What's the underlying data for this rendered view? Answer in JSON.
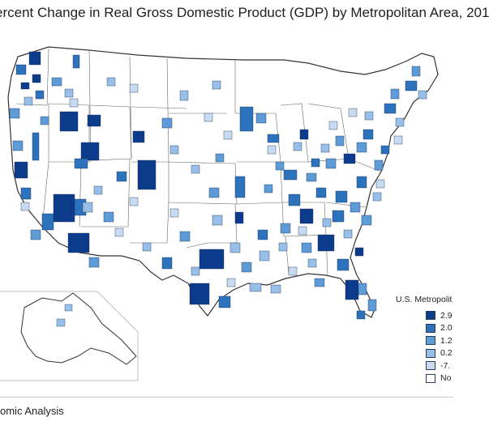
{
  "title": "ercent Change in Real Gross Domestic Product (GDP) by Metropolitan Area, 201",
  "legend": {
    "title": "U.S. Metropolit",
    "items": [
      {
        "label": "2.9",
        "color": "#0d3b8c"
      },
      {
        "label": "2.0",
        "color": "#2c72bd"
      },
      {
        "label": "1.2",
        "color": "#5d9bd9"
      },
      {
        "label": "0.2",
        "color": "#98bfe8"
      },
      {
        "label": "-7.",
        "color": "#c8dbf3"
      },
      {
        "label": "No",
        "color": "#ffffff"
      }
    ]
  },
  "footer": "omic Analysis"
}
